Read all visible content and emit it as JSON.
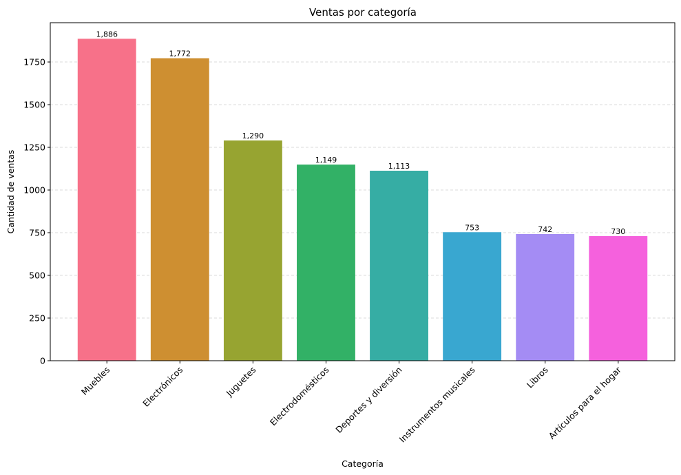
{
  "chart_data": {
    "type": "bar",
    "title": "Ventas por categoría",
    "xlabel": "Categoría",
    "ylabel": "Cantidad de ventas",
    "categories": [
      "Muebles",
      "Electrónicos",
      "Juguetes",
      "Electrodomésticos",
      "Deportes y diversión",
      "Instrumentos musicales",
      "Libros",
      "Artículos para el hogar"
    ],
    "values": [
      1886,
      1772,
      1290,
      1149,
      1113,
      753,
      742,
      730
    ],
    "data_labels": [
      "1,886",
      "1,772",
      "1,290",
      "1,149",
      "1,113",
      "753",
      "742",
      "730"
    ],
    "colors": [
      "#f77189",
      "#ce8f31",
      "#97a431",
      "#32b166",
      "#36ada4",
      "#39a7d0",
      "#a48cf4",
      "#f561dd"
    ],
    "ylim": [
      0,
      1980
    ],
    "yticks": [
      0,
      250,
      500,
      750,
      1000,
      1250,
      1500,
      1750
    ],
    "ytick_labels": [
      "0",
      "250",
      "500",
      "750",
      "1000",
      "1250",
      "1500",
      "1750"
    ],
    "grid": "y-dashed",
    "xtick_rotation": 45
  }
}
